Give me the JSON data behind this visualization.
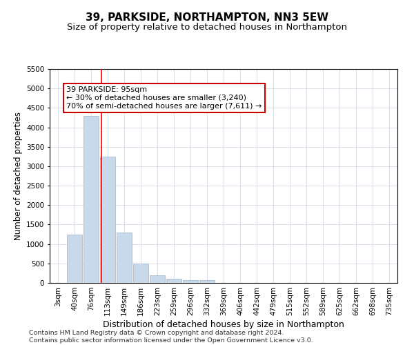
{
  "title": "39, PARKSIDE, NORTHAMPTON, NN3 5EW",
  "subtitle": "Size of property relative to detached houses in Northampton",
  "xlabel": "Distribution of detached houses by size in Northampton",
  "ylabel": "Number of detached properties",
  "categories": [
    "3sqm",
    "40sqm",
    "76sqm",
    "113sqm",
    "149sqm",
    "186sqm",
    "223sqm",
    "259sqm",
    "296sqm",
    "332sqm",
    "369sqm",
    "406sqm",
    "442sqm",
    "479sqm",
    "515sqm",
    "552sqm",
    "589sqm",
    "625sqm",
    "662sqm",
    "698sqm",
    "735sqm"
  ],
  "values": [
    0,
    1250,
    4300,
    3250,
    1300,
    500,
    200,
    100,
    75,
    75,
    0,
    0,
    0,
    0,
    0,
    0,
    0,
    0,
    0,
    0,
    0
  ],
  "bar_color": "#c8d9ea",
  "bar_edgecolor": "#9ab4cc",
  "red_line_x": 2.62,
  "annotation_text_line1": "39 PARKSIDE: 95sqm",
  "annotation_text_line2": "← 30% of detached houses are smaller (3,240)",
  "annotation_text_line3": "70% of semi-detached houses are larger (7,611) →",
  "annotation_box_color": "#ffffff",
  "annotation_box_edgecolor": "#cc0000",
  "ylim": [
    0,
    5500
  ],
  "yticks": [
    0,
    500,
    1000,
    1500,
    2000,
    2500,
    3000,
    3500,
    4000,
    4500,
    5000,
    5500
  ],
  "footer_line1": "Contains HM Land Registry data © Crown copyright and database right 2024.",
  "footer_line2": "Contains public sector information licensed under the Open Government Licence v3.0.",
  "bg_color": "#ffffff",
  "grid_color": "#ccd5e0",
  "title_fontsize": 11,
  "subtitle_fontsize": 9.5,
  "tick_fontsize": 7.5,
  "ylabel_fontsize": 8.5,
  "xlabel_fontsize": 9,
  "footer_fontsize": 6.8,
  "annot_fontsize": 8
}
